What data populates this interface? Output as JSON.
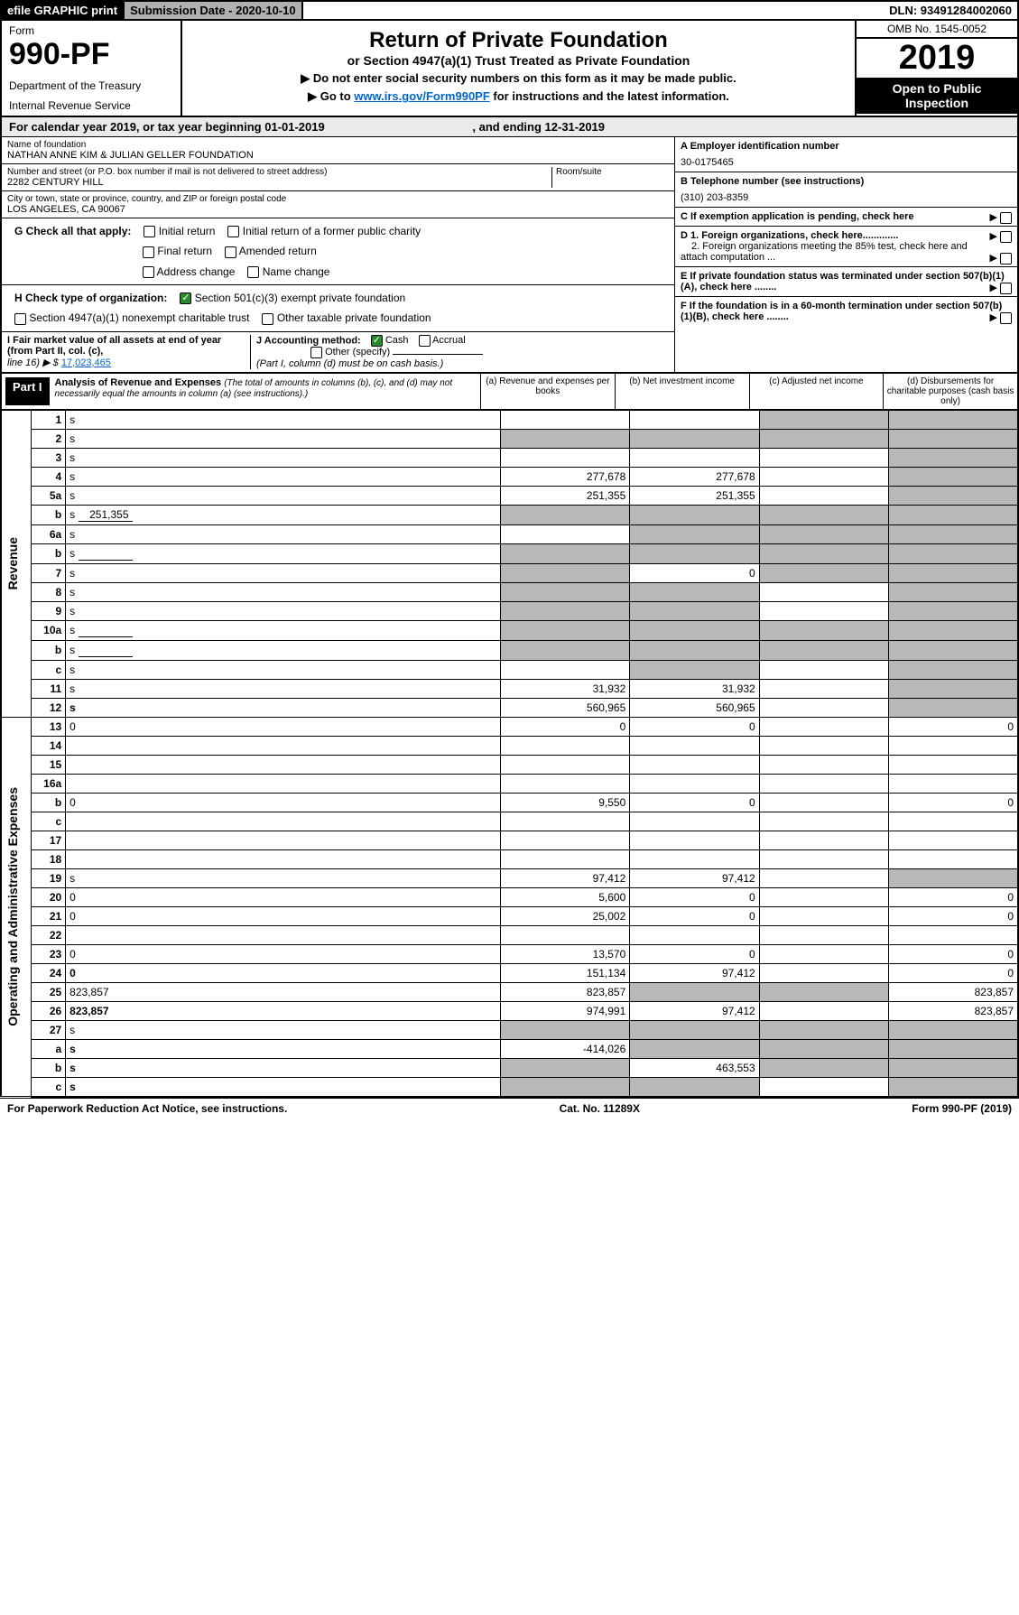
{
  "topbar": {
    "efile": "efile GRAPHIC print",
    "subdate_label": "Submission Date - 2020-10-10",
    "dln": "DLN: 93491284002060"
  },
  "header": {
    "form_label": "Form",
    "form_num": "990-PF",
    "dept1": "Department of the Treasury",
    "dept2": "Internal Revenue Service",
    "title": "Return of Private Foundation",
    "subtitle": "or Section 4947(a)(1) Trust Treated as Private Foundation",
    "instr1": "▶ Do not enter social security numbers on this form as it may be made public.",
    "instr2a": "▶ Go to ",
    "instr2_link": "www.irs.gov/Form990PF",
    "instr2b": " for instructions and the latest information.",
    "omb": "OMB No. 1545-0052",
    "year": "2019",
    "open": "Open to Public Inspection"
  },
  "cal": {
    "text1": "For calendar year 2019, or tax year beginning 01-01-2019",
    "text2": ", and ending 12-31-2019"
  },
  "foundation": {
    "name_label": "Name of foundation",
    "name": "NATHAN ANNE KIM & JULIAN GELLER FOUNDATION",
    "addr_label": "Number and street (or P.O. box number if mail is not delivered to street address)",
    "addr": "2282 CENTURY HILL",
    "room_label": "Room/suite",
    "city_label": "City or town, state or province, country, and ZIP or foreign postal code",
    "city": "LOS ANGELES, CA  90067"
  },
  "side": {
    "a_label": "A Employer identification number",
    "a_val": "30-0175465",
    "b_label": "B Telephone number (see instructions)",
    "b_val": "(310) 203-8359",
    "c_label": "C If exemption application is pending, check here",
    "d1": "D 1. Foreign organizations, check here.............",
    "d2": "2. Foreign organizations meeting the 85% test, check here and attach computation ...",
    "e_label": "E  If private foundation status was terminated under section 507(b)(1)(A), check here ........",
    "f_label": "F  If the foundation is in a 60-month termination under section 507(b)(1)(B), check here ........"
  },
  "g": {
    "label": "G Check all that apply:",
    "opts": [
      "Initial return",
      "Initial return of a former public charity",
      "Final return",
      "Amended return",
      "Address change",
      "Name change"
    ]
  },
  "h": {
    "label": "H Check type of organization:",
    "opt1": "Section 501(c)(3) exempt private foundation",
    "opt2": "Section 4947(a)(1) nonexempt charitable trust",
    "opt3": "Other taxable private foundation"
  },
  "i": {
    "label1": "I Fair market value of all assets at end of year (from Part II, col. (c),",
    "label2": "line 16) ▶ $",
    "val": "17,023,465"
  },
  "j": {
    "label": "J Accounting method:",
    "cash": "Cash",
    "accrual": "Accrual",
    "other": "Other (specify)",
    "note": "(Part I, column (d) must be on cash basis.)"
  },
  "part1": {
    "label": "Part I",
    "title": "Analysis of Revenue and Expenses",
    "note": " (The total of amounts in columns (b), (c), and (d) may not necessarily equal the amounts in column (a) (see instructions).)",
    "col_a": "(a)   Revenue and expenses per books",
    "col_b": "(b)   Net investment income",
    "col_c": "(c)   Adjusted net income",
    "col_d": "(d)   Disbursements for charitable purposes (cash basis only)"
  },
  "sections": {
    "revenue": "Revenue",
    "expenses": "Operating and Administrative Expenses"
  },
  "rows": [
    {
      "n": "1",
      "d": "s",
      "a": "",
      "b": "",
      "c": "s"
    },
    {
      "n": "2",
      "d": "s",
      "a": "s",
      "b": "s",
      "c": "s"
    },
    {
      "n": "3",
      "d": "s",
      "a": "",
      "b": "",
      "c": ""
    },
    {
      "n": "4",
      "d": "s",
      "a": "277,678",
      "b": "277,678",
      "c": ""
    },
    {
      "n": "5a",
      "d": "s",
      "a": "251,355",
      "b": "251,355",
      "c": ""
    },
    {
      "n": "b",
      "d": "s",
      "inline": "251,355",
      "a": "s",
      "b": "s",
      "c": "s"
    },
    {
      "n": "6a",
      "d": "s",
      "a": "",
      "b": "s",
      "c": "s"
    },
    {
      "n": "b",
      "d": "s",
      "inline_blank": true,
      "a": "s",
      "b": "s",
      "c": "s"
    },
    {
      "n": "7",
      "d": "s",
      "a": "s",
      "b": "0",
      "c": "s"
    },
    {
      "n": "8",
      "d": "s",
      "a": "s",
      "b": "s",
      "c": ""
    },
    {
      "n": "9",
      "d": "s",
      "a": "s",
      "b": "s",
      "c": ""
    },
    {
      "n": "10a",
      "d": "s",
      "inline_blank": true,
      "a": "s",
      "b": "s",
      "c": "s"
    },
    {
      "n": "b",
      "d": "s",
      "inline_blank": true,
      "a": "s",
      "b": "s",
      "c": "s"
    },
    {
      "n": "c",
      "d": "s",
      "a": "",
      "b": "s",
      "c": ""
    },
    {
      "n": "11",
      "d": "s",
      "a": "31,932",
      "b": "31,932",
      "c": ""
    },
    {
      "n": "12",
      "d": "s",
      "bold": true,
      "a": "560,965",
      "b": "560,965",
      "c": ""
    },
    {
      "n": "13",
      "d": "0",
      "a": "0",
      "b": "0",
      "c": ""
    },
    {
      "n": "14",
      "d": "",
      "a": "",
      "b": "",
      "c": ""
    },
    {
      "n": "15",
      "d": "",
      "a": "",
      "b": "",
      "c": ""
    },
    {
      "n": "16a",
      "d": "",
      "a": "",
      "b": "",
      "c": ""
    },
    {
      "n": "b",
      "d": "0",
      "a": "9,550",
      "b": "0",
      "c": ""
    },
    {
      "n": "c",
      "d": "",
      "a": "",
      "b": "",
      "c": ""
    },
    {
      "n": "17",
      "d": "",
      "a": "",
      "b": "",
      "c": ""
    },
    {
      "n": "18",
      "d": "",
      "a": "",
      "b": "",
      "c": ""
    },
    {
      "n": "19",
      "d": "s",
      "a": "97,412",
      "b": "97,412",
      "c": ""
    },
    {
      "n": "20",
      "d": "0",
      "a": "5,600",
      "b": "0",
      "c": ""
    },
    {
      "n": "21",
      "d": "0",
      "a": "25,002",
      "b": "0",
      "c": ""
    },
    {
      "n": "22",
      "d": "",
      "a": "",
      "b": "",
      "c": ""
    },
    {
      "n": "23",
      "d": "0",
      "a": "13,570",
      "b": "0",
      "c": ""
    },
    {
      "n": "24",
      "d": "0",
      "bold": true,
      "a": "151,134",
      "b": "97,412",
      "c": ""
    },
    {
      "n": "25",
      "d": "823,857",
      "a": "823,857",
      "b": "s",
      "c": "s"
    },
    {
      "n": "26",
      "d": "823,857",
      "bold": true,
      "a": "974,991",
      "b": "97,412",
      "c": ""
    },
    {
      "n": "27",
      "d": "s",
      "a": "s",
      "b": "s",
      "c": "s"
    },
    {
      "n": "a",
      "d": "s",
      "bold": true,
      "a": "-414,026",
      "b": "s",
      "c": "s"
    },
    {
      "n": "b",
      "d": "s",
      "bold": true,
      "a": "s",
      "b": "463,553",
      "c": "s"
    },
    {
      "n": "c",
      "d": "s",
      "bold": true,
      "a": "s",
      "b": "s",
      "c": ""
    }
  ],
  "footer": {
    "left": "For Paperwork Reduction Act Notice, see instructions.",
    "mid": "Cat. No. 11289X",
    "right": "Form 990-PF (2019)"
  }
}
